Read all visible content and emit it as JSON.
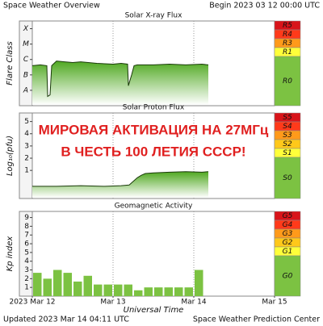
{
  "header": {
    "title": "Space Weather Overview",
    "begin": "Begin 2023 03 12 00:00 UTC"
  },
  "footer": {
    "updated": "Updated 2023 Mar 14 04:11 UTC",
    "credit": "Space Weather Prediction Center"
  },
  "chart_data": [
    {
      "type": "area",
      "title": "Solar X-ray Flux",
      "y_label": "Flare Class",
      "color": "#5db82a",
      "xlim": [
        0,
        3
      ],
      "ylim": [
        -8.5,
        -3
      ],
      "yticks": [
        {
          "value": -7.5,
          "label": "A"
        },
        {
          "value": -6.5,
          "label": "B"
        },
        {
          "value": -5.5,
          "label": "C"
        },
        {
          "value": -4.5,
          "label": "M"
        },
        {
          "value": -3.5,
          "label": "X"
        }
      ],
      "x": [
        0,
        0.1,
        0.18,
        0.19,
        0.22,
        0.24,
        0.3,
        0.4,
        0.5,
        0.6,
        0.8,
        1.0,
        1.1,
        1.18,
        1.19,
        1.23,
        1.26,
        1.3,
        1.5,
        1.7,
        1.9,
        2.1,
        2.18
      ],
      "values": [
        -5.9,
        -5.85,
        -5.9,
        -7.9,
        -7.8,
        -5.9,
        -5.6,
        -5.65,
        -5.7,
        -5.65,
        -5.75,
        -5.8,
        -5.75,
        -5.8,
        -7.2,
        -6.5,
        -5.9,
        -5.85,
        -5.85,
        -5.8,
        -5.85,
        -5.8,
        -5.85
      ],
      "scale": [
        {
          "label": "R5",
          "color": "#d8141a"
        },
        {
          "label": "R4",
          "color": "#ff3a1a"
        },
        {
          "label": "R3",
          "color": "#ff9a1a"
        },
        {
          "label": "R1",
          "color": "#ffff3a"
        },
        {
          "label": "R0",
          "color": "#7cc242"
        }
      ]
    },
    {
      "type": "area",
      "title": "Solar Proton Flux",
      "y_label": "Log₁₀(pfu)",
      "color": "#5db82a",
      "xlim": [
        0,
        3
      ],
      "ylim": [
        -1.3,
        5.7
      ],
      "yticks": [
        1,
        2,
        3,
        4,
        5
      ],
      "x": [
        0,
        0.3,
        0.6,
        0.9,
        1.1,
        1.2,
        1.25,
        1.3,
        1.35,
        1.4,
        1.5,
        1.7,
        1.9,
        2.1,
        2.18
      ],
      "values": [
        -0.3,
        -0.3,
        -0.25,
        -0.3,
        -0.25,
        -0.2,
        0.1,
        0.4,
        0.6,
        0.75,
        0.8,
        0.85,
        0.9,
        0.85,
        0.9
      ],
      "annotations": [
        "МИРОВАЯ АКТИВАЦИЯ НА 27МГц",
        "В ЧЕСТЬ 100 ЛЕТИЯ СССР!"
      ],
      "scale": [
        {
          "label": "S5",
          "color": "#d8141a"
        },
        {
          "label": "S4",
          "color": "#ff3a1a"
        },
        {
          "label": "S3",
          "color": "#ff9a1a"
        },
        {
          "label": "S2",
          "color": "#ffc81a"
        },
        {
          "label": "S1",
          "color": "#ffff3a"
        },
        {
          "label": "S0",
          "color": "#7cc242"
        }
      ]
    },
    {
      "type": "bar",
      "title": "Geomagnetic Activity",
      "y_label": "Kp index",
      "x_label": "Universal Time",
      "color": "#7cc242",
      "xlim": [
        0,
        3
      ],
      "ylim": [
        0,
        9.7
      ],
      "yticks": [
        1,
        2,
        3,
        4,
        5,
        6,
        7,
        8,
        9
      ],
      "xticks": [
        {
          "value": 0,
          "label": "2023 Mar 12"
        },
        {
          "value": 1,
          "label": "Mar 13"
        },
        {
          "value": 2,
          "label": "Mar 14"
        },
        {
          "value": 3,
          "label": "Mar 15"
        }
      ],
      "x": [
        0,
        0.125,
        0.25,
        0.375,
        0.5,
        0.625,
        0.75,
        0.875,
        1,
        1.125,
        1.25,
        1.375,
        1.5,
        1.625,
        1.75,
        1.875,
        2
      ],
      "bar_width": 0.125,
      "values": [
        2.67,
        2,
        3,
        2.67,
        1.67,
        2.33,
        1.33,
        1.33,
        1.33,
        1.33,
        0.67,
        1,
        1,
        1,
        1,
        1,
        3
      ],
      "scale": [
        {
          "label": "G5",
          "color": "#d8141a"
        },
        {
          "label": "G4",
          "color": "#ff3a1a"
        },
        {
          "label": "G3",
          "color": "#ff9a1a"
        },
        {
          "label": "G2",
          "color": "#ffc81a"
        },
        {
          "label": "G1",
          "color": "#ffff3a"
        },
        {
          "label": "G0",
          "color": "#7cc242"
        }
      ]
    }
  ]
}
